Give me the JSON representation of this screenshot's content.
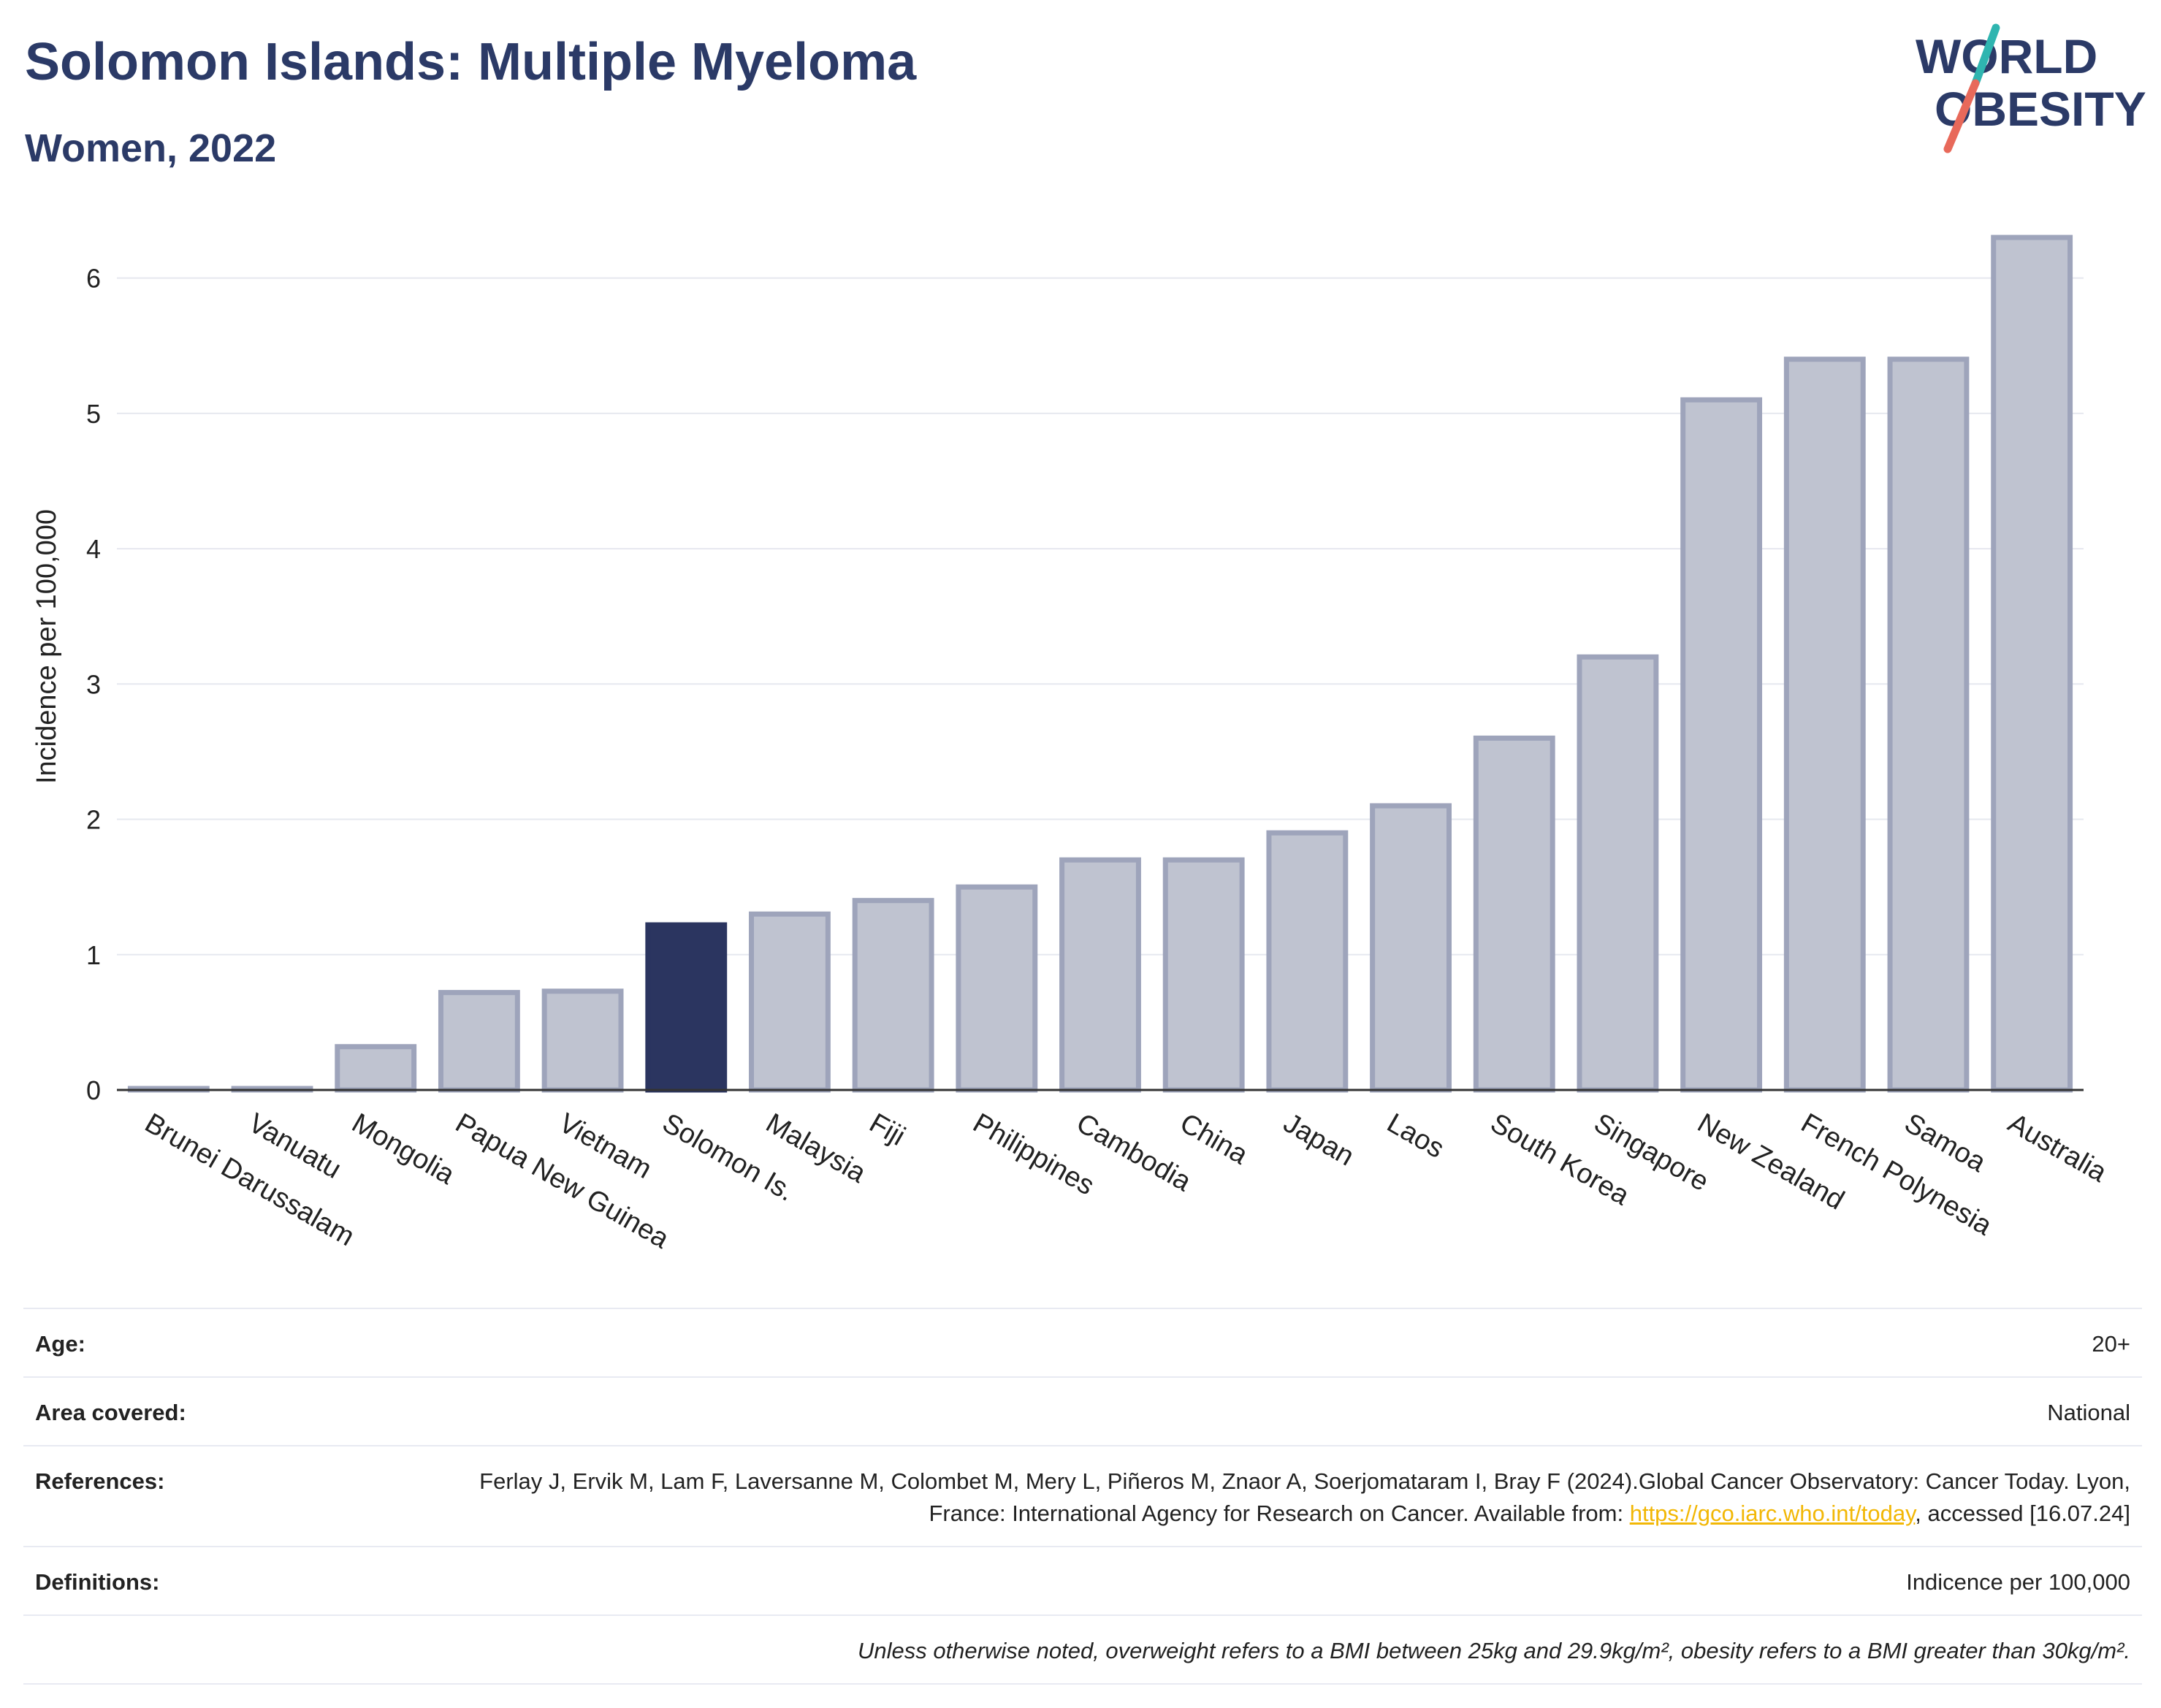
{
  "header": {
    "title": "Solomon Islands: Multiple Myeloma",
    "subtitle": "Women, 2022"
  },
  "logo": {
    "line1": "WORLD",
    "line2": "OBESITY",
    "colors": {
      "text": "#2b3a67",
      "slash_top": "#2fb5b0",
      "slash_bottom": "#e8695a"
    }
  },
  "colors": {
    "title": "#2b3a67",
    "bar": "#bfc3d0",
    "bar_border": "#9ea4bb",
    "bar_highlight": "#2b3560",
    "grid": "#e6e8ef",
    "link": "#f2b705"
  },
  "chart_data": {
    "type": "bar",
    "title": "Solomon Islands: Multiple Myeloma",
    "subtitle": "Women, 2022",
    "xlabel": "",
    "ylabel": "Incidence per 100,000",
    "ylim": [
      0,
      6.5
    ],
    "yticks": [
      0,
      1,
      2,
      3,
      4,
      5,
      6
    ],
    "grid": true,
    "highlight": "Solomon Is.",
    "categories": [
      "Brunei Darussalam",
      "Vanuatu",
      "Mongolia",
      "Papua New Guinea",
      "Vietnam",
      "Solomon Is.",
      "Malaysia",
      "Fiji",
      "Philippines",
      "Cambodia",
      "China",
      "Japan",
      "Laos",
      "South Korea",
      "Singapore",
      "New Zealand",
      "French Polynesia",
      "Samoa",
      "Australia"
    ],
    "values": [
      0.01,
      0.01,
      0.32,
      0.72,
      0.73,
      1.22,
      1.3,
      1.4,
      1.5,
      1.7,
      1.7,
      1.9,
      2.1,
      2.6,
      3.2,
      5.1,
      5.4,
      5.4,
      6.3
    ]
  },
  "meta": {
    "age_label": "Age:",
    "age_value": "20+",
    "area_label": "Area covered:",
    "area_value": "National",
    "references_label": "References:",
    "references_text": "Ferlay J, Ervik M, Lam F, Laversanne M, Colombet M, Mery L, Piñeros M, Znaor A, Soerjomataram I, Bray F (2024).Global Cancer Observatory: Cancer Today. Lyon, France: International Agency for Research on Cancer. Available from: ",
    "references_link": "https://gco.iarc.who.int/today",
    "references_suffix": ", accessed [16.07.24]",
    "definitions_label": "Definitions:",
    "definitions_value": "Indicence per 100,000",
    "note": "Unless otherwise noted, overweight refers to a BMI between 25kg and 29.9kg/m², obesity refers to a BMI greater than 30kg/m²."
  }
}
